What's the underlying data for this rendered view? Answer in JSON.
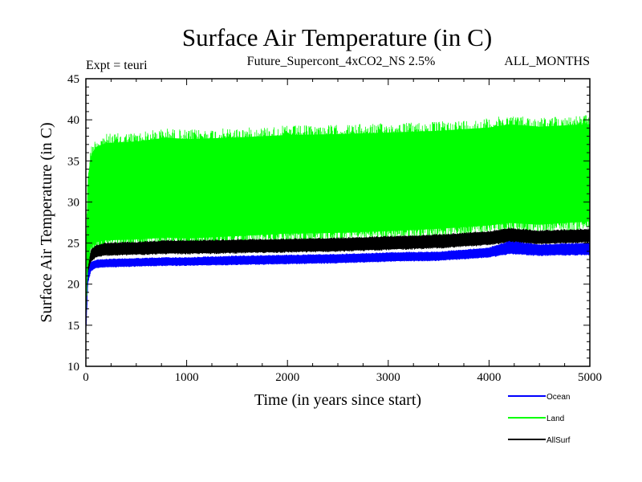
{
  "chart_data": {
    "type": "line",
    "title": "Surface Air Temperature (in C)",
    "subtitle_left": "Expt = teuri",
    "subtitle_center": "Future_Supercont_4xCO2_NS 2.5%",
    "subtitle_right": "ALL_MONTHS",
    "xlabel": "Time (in years since start)",
    "ylabel": "Surface Air Temperature (in C)",
    "xlim": [
      0,
      5000
    ],
    "ylim": [
      10,
      45
    ],
    "x_ticks": [
      "0",
      "1000",
      "2000",
      "3000",
      "4000",
      "5000"
    ],
    "y_ticks": [
      "10",
      "15",
      "20",
      "25",
      "30",
      "35",
      "40",
      "45"
    ],
    "grid": false,
    "legend_position": "bottom-right, outside plot",
    "series": [
      {
        "name": "Land",
        "color": "#00ff00",
        "x": [
          0,
          20,
          50,
          100,
          200,
          500,
          800,
          1000,
          1500,
          2000,
          2500,
          3000,
          3500,
          4000,
          4200,
          4500,
          5000
        ],
        "y_upper": [
          24,
          34,
          36.8,
          37.8,
          38.3,
          38.5,
          39,
          38.8,
          39,
          39.3,
          39.4,
          39.6,
          39.8,
          40.2,
          40.6,
          40.3,
          40.6
        ],
        "y_lower": [
          13,
          21,
          23.5,
          24,
          24.2,
          24.3,
          24.5,
          24.4,
          24.7,
          25,
          25.1,
          25.3,
          25.6,
          26,
          26.3,
          26.1,
          26.5
        ]
      },
      {
        "name": "AllSurf",
        "color": "#000000",
        "x": [
          0,
          20,
          50,
          100,
          200,
          500,
          800,
          1000,
          1500,
          2000,
          2500,
          3000,
          3500,
          4000,
          4200,
          4500,
          5000
        ],
        "y_upper": [
          14.5,
          22,
          24.3,
          24.8,
          25.1,
          25.2,
          25.4,
          25.4,
          25.5,
          25.6,
          25.7,
          25.9,
          26.1,
          26.5,
          26.9,
          26.6,
          26.8
        ],
        "y_lower": [
          13.5,
          20.5,
          22.6,
          23.2,
          23.4,
          23.5,
          23.6,
          23.6,
          23.7,
          23.8,
          23.9,
          24.1,
          24.3,
          24.7,
          25,
          24.8,
          25
        ]
      },
      {
        "name": "Ocean",
        "color": "#0000ff",
        "x": [
          0,
          20,
          50,
          100,
          200,
          500,
          800,
          1000,
          1500,
          2000,
          2500,
          3000,
          3500,
          4000,
          4200,
          4500,
          5000
        ],
        "y_upper": [
          15,
          21.5,
          22.8,
          23,
          23.1,
          23.2,
          23.3,
          23.3,
          23.5,
          23.6,
          23.7,
          23.9,
          24,
          24.5,
          25.3,
          24.9,
          25.1
        ],
        "y_lower": [
          13,
          20,
          21.5,
          21.9,
          22,
          22.1,
          22.2,
          22.2,
          22.3,
          22.4,
          22.5,
          22.7,
          22.8,
          23.2,
          23.6,
          23.4,
          23.5
        ]
      }
    ],
    "legend": [
      {
        "label": "Ocean",
        "color": "#0000ff"
      },
      {
        "label": "Land",
        "color": "#00ff00"
      },
      {
        "label": "AllSurf",
        "color": "#000000"
      }
    ]
  }
}
